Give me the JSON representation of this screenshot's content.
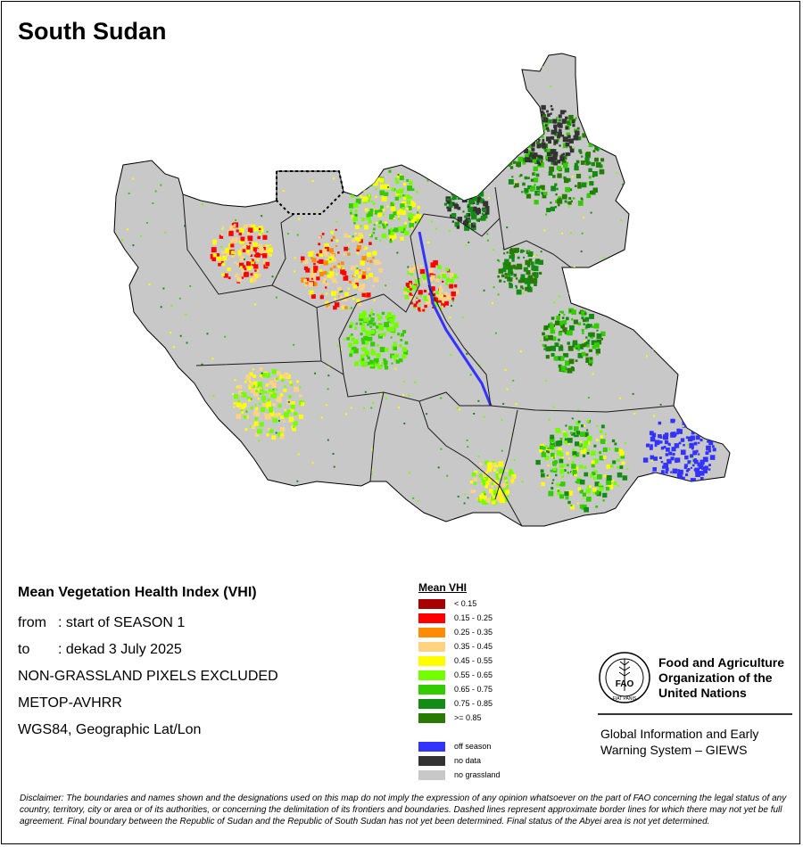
{
  "title": "South Sudan",
  "info": {
    "heading": "Mean Vegetation Health Index (VHI)",
    "from_label": "from",
    "from_value": ": start of SEASON 1",
    "to_label": "to",
    "to_value": ": dekad 3 July 2025",
    "line_excluded": "NON-GRASSLAND PIXELS EXCLUDED",
    "line_sensor": "METOP-AVHRR",
    "line_projection": "WGS84, Geographic Lat/Lon"
  },
  "legend": {
    "title": "Mean VHI",
    "classes": [
      {
        "label": "< 0.15",
        "color": "#a80000"
      },
      {
        "label": "0.15 - 0.25",
        "color": "#ff0000"
      },
      {
        "label": "0.25 - 0.35",
        "color": "#ff8c00"
      },
      {
        "label": "0.35 - 0.45",
        "color": "#ffd37f"
      },
      {
        "label": "0.45 - 0.55",
        "color": "#ffff00"
      },
      {
        "label": "0.55 - 0.65",
        "color": "#73ff00"
      },
      {
        "label": "0.65 - 0.75",
        "color": "#33cc00"
      },
      {
        "label": "0.75 - 0.85",
        "color": "#128c12"
      },
      {
        "label": ">= 0.85",
        "color": "#287a00"
      }
    ],
    "special": [
      {
        "label": "off season",
        "color": "#3333ff"
      },
      {
        "label": "no data",
        "color": "#333333"
      },
      {
        "label": "no grassland",
        "color": "#c8c8c8"
      }
    ]
  },
  "fao": {
    "logo_icon": "fao-emblem-icon",
    "logo_letters": "FAO",
    "logo_motto": "FIAT PANIS",
    "name_line1": "Food and Agriculture",
    "name_line2": "Organization of the",
    "name_line3": "United Nations",
    "giews_line1": "Global Information and Early",
    "giews_line2": "Warning System – GIEWS"
  },
  "disclaimer": "Disclaimer: The boundaries and names shown and the designations used on this map do not imply the expression of any opinion whatsoever on the part of FAO concerning the legal status of any country, territory, city or area or of its authorities, or concerning the delimitation of its frontiers and boundaries. Dashed lines represent approximate border lines for which there may not yet be full agreement.  Final boundary between the Republic of Sudan and the Republic of South Sudan has not yet been determined. Final status of the Abyei area is not yet determined."
}
